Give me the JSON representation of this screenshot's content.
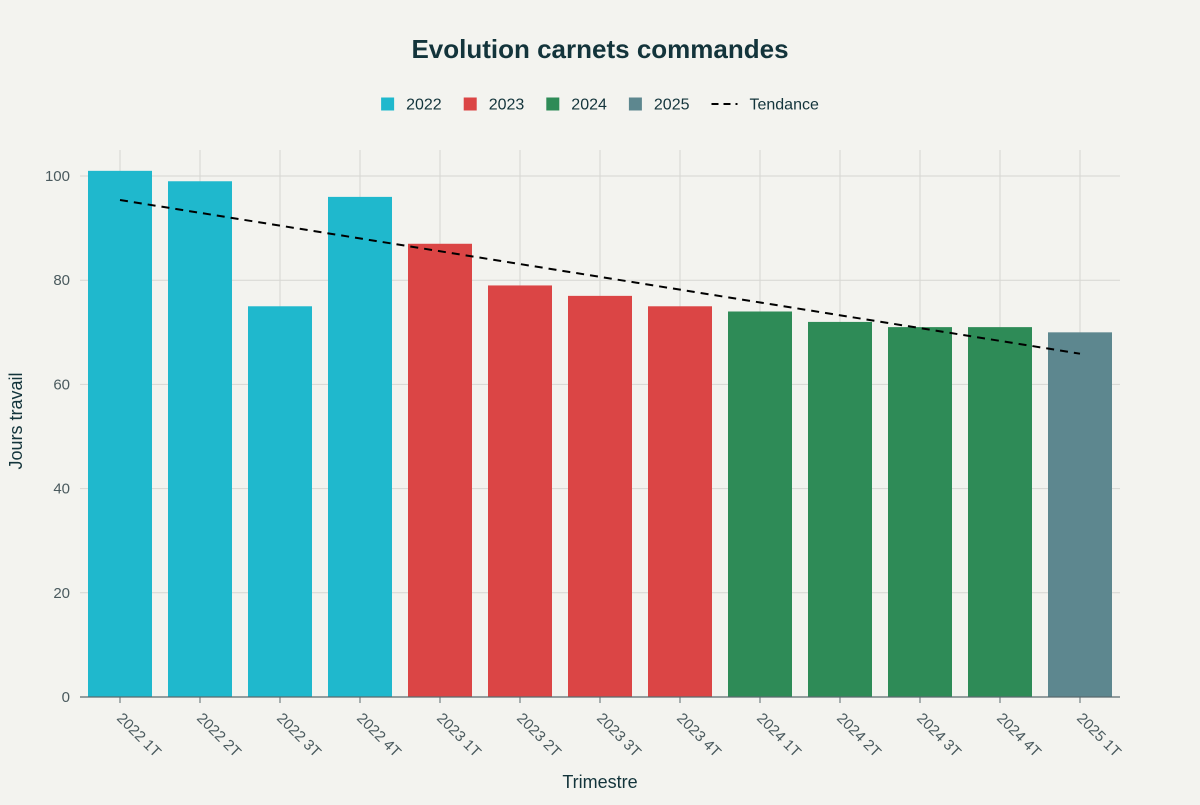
{
  "chart_data": {
    "type": "bar",
    "title": "Evolution carnets commandes",
    "xlabel": "Trimestre",
    "ylabel": "Jours travail",
    "ylim": [
      0,
      105
    ],
    "yticks": [
      0,
      20,
      40,
      60,
      80,
      100
    ],
    "categories": [
      "2022 1T",
      "2022 2T",
      "2022 3T",
      "2022 4T",
      "2023 1T",
      "2023 2T",
      "2023 3T",
      "2023 4T",
      "2024 1T",
      "2024 2T",
      "2024 3T",
      "2024 4T",
      "2025 1T"
    ],
    "values": [
      101,
      99,
      75,
      96,
      87,
      79,
      77,
      75,
      74,
      72,
      71,
      71,
      70
    ],
    "groups": [
      "2022",
      "2022",
      "2022",
      "2022",
      "2023",
      "2023",
      "2023",
      "2023",
      "2024",
      "2024",
      "2024",
      "2024",
      "2025"
    ],
    "legend": [
      {
        "name": "2022",
        "color": "#1fb8cd"
      },
      {
        "name": "2023",
        "color": "#db4545"
      },
      {
        "name": "2024",
        "color": "#2e8b57"
      },
      {
        "name": "2025",
        "color": "#5d878f"
      },
      {
        "name": "Tendance",
        "color": "#000000",
        "style": "dashed"
      }
    ],
    "trend": {
      "name": "Tendance",
      "start": 95.4,
      "end": 65.9
    },
    "grid": true,
    "legend_position": "top-center"
  }
}
